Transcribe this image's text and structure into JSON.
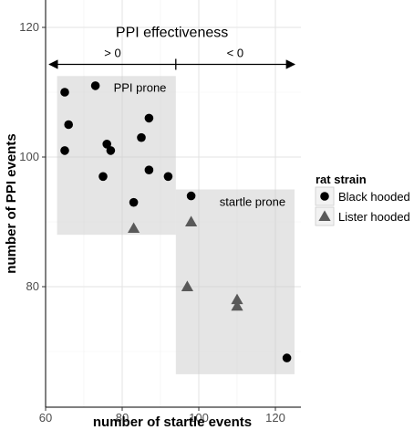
{
  "chart_data": {
    "type": "scatter",
    "xlabel": "number of startle events",
    "ylabel": "number of PPI events",
    "xlim": [
      60,
      127
    ],
    "ylim": [
      64,
      122
    ],
    "x_ticks": [
      60,
      80,
      100,
      120
    ],
    "y_ticks": [
      80,
      100,
      120
    ],
    "grid": true,
    "legend": {
      "title": "rat strain",
      "position": "right",
      "entries": [
        "Black hooded",
        "Lister hooded"
      ]
    },
    "series": [
      {
        "name": "Black hooded",
        "marker": "circle",
        "color": "#000000",
        "points": [
          [
            65,
            110
          ],
          [
            73,
            111
          ],
          [
            66,
            105
          ],
          [
            65,
            101
          ],
          [
            76,
            102
          ],
          [
            77,
            101
          ],
          [
            75,
            97
          ],
          [
            87,
            106
          ],
          [
            85,
            103
          ],
          [
            87,
            98
          ],
          [
            92,
            97
          ],
          [
            83,
            93
          ],
          [
            98,
            94
          ],
          [
            123,
            69
          ]
        ]
      },
      {
        "name": "Lister hooded",
        "marker": "triangle",
        "color": "#595959",
        "points": [
          [
            83,
            89
          ],
          [
            98,
            90
          ],
          [
            97,
            80
          ],
          [
            110,
            78
          ],
          [
            110,
            77
          ]
        ]
      }
    ],
    "regions": [
      {
        "label": "PPI prone",
        "x": [
          63,
          94
        ],
        "y": [
          88,
          112.5
        ]
      },
      {
        "label": "startle prone",
        "x": [
          94,
          125
        ],
        "y": [
          66.5,
          95
        ]
      }
    ],
    "annotations": {
      "title": "PPI effectiveness",
      "left_label": "> 0",
      "right_label": "< 0",
      "arrow_y": 114.3,
      "arrow_x": [
        61,
        125
      ],
      "divider_x": 94
    }
  }
}
